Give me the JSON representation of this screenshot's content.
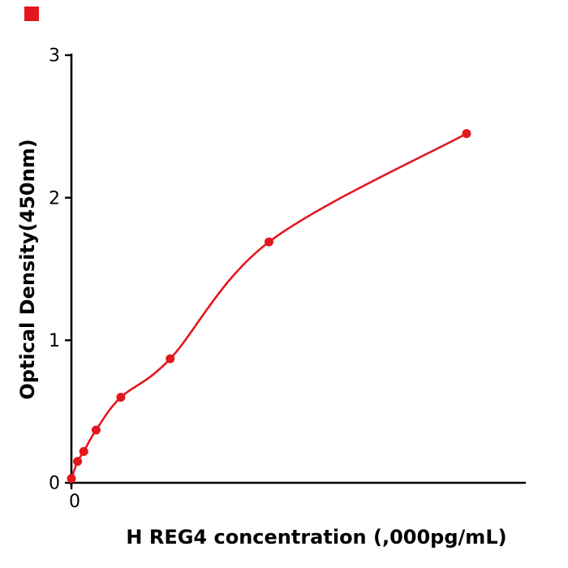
{
  "chart_data": {
    "type": "scatter",
    "title": "",
    "xlabel": "H  REG4 concentration (,000pg/mL)",
    "ylabel": "Optical Density(450nm)",
    "x": [
      0,
      0.125,
      0.25,
      0.5,
      1,
      2,
      4,
      8
    ],
    "y": [
      0.03,
      0.15,
      0.22,
      0.37,
      0.6,
      0.87,
      1.69,
      2.45
    ],
    "fit_line": "smooth saturating curve through all points",
    "xlim": [
      0,
      9.2
    ],
    "ylim": [
      0,
      3
    ],
    "x_ticks": [
      0
    ],
    "y_ticks": [
      0,
      1,
      2,
      3
    ],
    "grid": false,
    "legend": "none",
    "point_color": "#e4171e",
    "line_color": "#e4171e",
    "axis_color": "#000000",
    "corner_mark_color": "#e4171e"
  }
}
